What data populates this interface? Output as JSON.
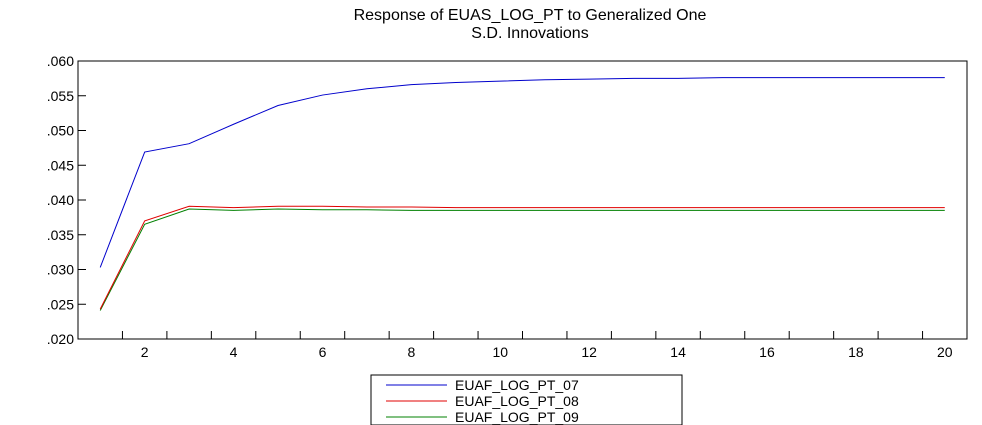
{
  "chart_data": {
    "type": "line",
    "title": "Response of EUAS_LOG_PT to Generalized One",
    "subtitle": "S.D. Innovations",
    "xlabel": "",
    "ylabel": "",
    "x": [
      1,
      2,
      3,
      4,
      5,
      6,
      7,
      8,
      9,
      10,
      11,
      12,
      13,
      14,
      15,
      16,
      17,
      18,
      19,
      20
    ],
    "x_tick_labels": [
      "2",
      "4",
      "6",
      "8",
      "10",
      "12",
      "14",
      "16",
      "18",
      "20"
    ],
    "x_tick_values": [
      2,
      4,
      6,
      8,
      10,
      12,
      14,
      16,
      18,
      20
    ],
    "ylim": [
      0.02,
      0.06
    ],
    "y_tick_labels": [
      ".060",
      ".055",
      ".050",
      ".045",
      ".040",
      ".035",
      ".030",
      ".025",
      ".020"
    ],
    "y_tick_values": [
      0.06,
      0.055,
      0.05,
      0.045,
      0.04,
      0.035,
      0.03,
      0.025,
      0.02
    ],
    "grid": false,
    "legend_position": "bottom-center",
    "series": [
      {
        "name": "EUAF_LOG_PT_07",
        "color": "#0000cc",
        "values": [
          0.0303,
          0.0469,
          0.0481,
          0.0509,
          0.0536,
          0.0551,
          0.056,
          0.0566,
          0.0569,
          0.0571,
          0.0573,
          0.0574,
          0.0575,
          0.0575,
          0.0576,
          0.0576,
          0.0576,
          0.0576,
          0.0576,
          0.0576
        ]
      },
      {
        "name": "EUAF_LOG_PT_08",
        "color": "#e00000",
        "values": [
          0.0243,
          0.037,
          0.0391,
          0.0389,
          0.0391,
          0.0391,
          0.039,
          0.039,
          0.0389,
          0.0389,
          0.0389,
          0.0389,
          0.0389,
          0.0389,
          0.0389,
          0.0389,
          0.0389,
          0.0389,
          0.0389,
          0.0389
        ]
      },
      {
        "name": "EUAF_LOG_PT_09",
        "color": "#008000",
        "values": [
          0.0241,
          0.0365,
          0.0387,
          0.0385,
          0.0387,
          0.0386,
          0.0386,
          0.0385,
          0.0385,
          0.0385,
          0.0385,
          0.0385,
          0.0385,
          0.0385,
          0.0385,
          0.0385,
          0.0385,
          0.0385,
          0.0385,
          0.0385
        ]
      }
    ]
  }
}
